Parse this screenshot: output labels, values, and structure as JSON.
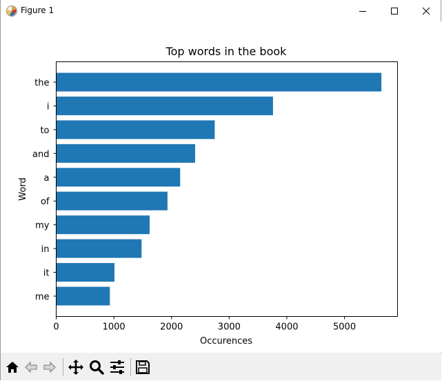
{
  "window": {
    "title": "Figure 1",
    "minimize_icon": "minimize-icon",
    "maximize_icon": "maximize-icon",
    "close_icon": "close-icon"
  },
  "toolbar": {
    "buttons": [
      {
        "name": "home-button",
        "icon": "home-icon"
      },
      {
        "name": "back-button",
        "icon": "back-arrow-icon"
      },
      {
        "name": "forward-button",
        "icon": "forward-arrow-icon"
      },
      {
        "name": "pan-button",
        "icon": "move-icon"
      },
      {
        "name": "zoom-button",
        "icon": "zoom-icon"
      },
      {
        "name": "configure-subplots-button",
        "icon": "sliders-icon"
      },
      {
        "name": "save-button",
        "icon": "save-icon"
      }
    ]
  },
  "colors": {
    "bar": "#1f77b4",
    "toolbar_bg": "#f0f0f0"
  },
  "chart_data": {
    "type": "bar",
    "orientation": "horizontal",
    "title": "Top words in the book",
    "xlabel": "Occurences",
    "ylabel": "Word",
    "categories": [
      "the",
      "i",
      "to",
      "and",
      "a",
      "of",
      "my",
      "in",
      "it",
      "me"
    ],
    "values": [
      5640,
      3760,
      2750,
      2410,
      2150,
      1930,
      1620,
      1480,
      1010,
      930
    ],
    "xlim": [
      0,
      5920
    ],
    "xticks": [
      0,
      1000,
      2000,
      3000,
      4000,
      5000
    ],
    "grid": false
  }
}
